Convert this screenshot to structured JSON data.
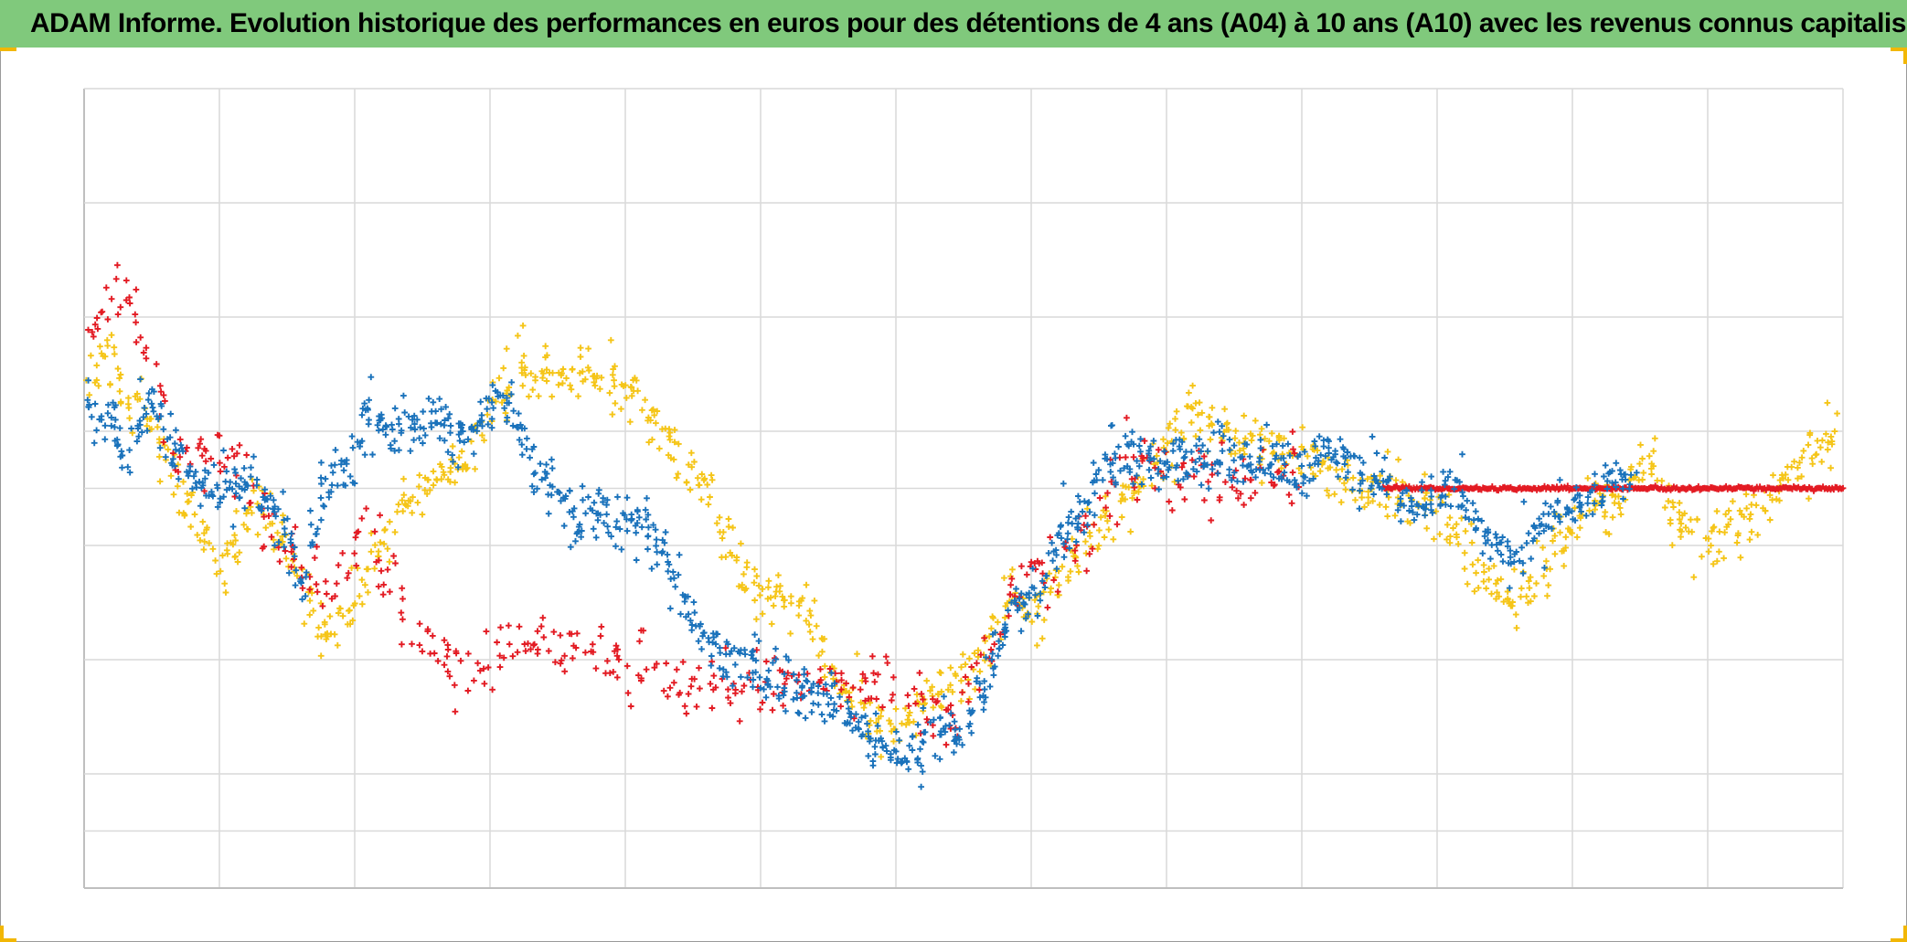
{
  "title": "ADAM Informe. Evolution historique des performances en euros pour des détentions de 4 ans (A04) à 10 ans (A10) avec les revenus connus capitalisés",
  "colors": {
    "title_bar": "#80c97c",
    "corner_marks": "#f2b705",
    "gridline": "#d9d9d9",
    "axis": "#bfbfbf"
  },
  "chart_data": {
    "type": "scatter",
    "title": "ADAM Informe. Evolution historique des performances en euros pour des détentions de 4 ans (A04) à 10 ans (A10) avec les revenus connus capitalisés",
    "xlabel": "",
    "ylabel": "",
    "x_range": [
      0,
      13
    ],
    "ylim": [
      -0.7,
      0.7
    ],
    "x_gridlines": [
      0,
      1,
      2,
      3,
      4,
      5,
      6,
      7,
      8,
      9,
      10,
      11,
      12,
      13
    ],
    "y_gridlines": [
      -0.7,
      -0.6,
      -0.5,
      -0.3,
      -0.1,
      0,
      0.1,
      0.3,
      0.5,
      0.7
    ],
    "tick_labels_visible": false,
    "marker": "plus",
    "legend": "none",
    "series": [
      {
        "name": "yellow",
        "color": "#f5c518",
        "anchors": [
          [
            0.0,
            0.17
          ],
          [
            0.15,
            0.24
          ],
          [
            0.3,
            0.16
          ],
          [
            0.5,
            0.12
          ],
          [
            0.7,
            0.0
          ],
          [
            0.85,
            -0.08
          ],
          [
            1.05,
            -0.15
          ],
          [
            1.25,
            -0.02
          ],
          [
            1.5,
            -0.1
          ],
          [
            1.6,
            -0.17
          ],
          [
            1.72,
            -0.22
          ],
          [
            1.85,
            -0.26
          ],
          [
            2.05,
            -0.16
          ],
          [
            2.35,
            -0.04
          ],
          [
            2.6,
            0.02
          ],
          [
            2.8,
            0.04
          ],
          [
            3.0,
            0.14
          ],
          [
            3.25,
            0.2
          ],
          [
            3.5,
            0.19
          ],
          [
            3.8,
            0.2
          ],
          [
            4.05,
            0.16
          ],
          [
            4.2,
            0.12
          ],
          [
            4.4,
            0.07
          ],
          [
            4.6,
            0.01
          ],
          [
            4.85,
            -0.14
          ],
          [
            5.05,
            -0.18
          ],
          [
            5.3,
            -0.2
          ],
          [
            5.55,
            -0.32
          ],
          [
            5.75,
            -0.38
          ],
          [
            5.9,
            -0.42
          ],
          [
            6.0,
            -0.42
          ],
          [
            6.2,
            -0.37
          ],
          [
            6.4,
            -0.35
          ],
          [
            6.6,
            -0.3
          ],
          [
            6.85,
            -0.18
          ],
          [
            7.05,
            -0.22
          ],
          [
            7.2,
            -0.15
          ],
          [
            7.4,
            -0.1
          ],
          [
            7.6,
            -0.05
          ],
          [
            7.95,
            0.05
          ],
          [
            8.2,
            0.14
          ],
          [
            8.45,
            0.1
          ],
          [
            8.7,
            0.07
          ],
          [
            9.0,
            0.07
          ],
          [
            9.3,
            0.02
          ],
          [
            9.6,
            -0.01
          ],
          [
            9.85,
            -0.01
          ],
          [
            10.05,
            -0.06
          ],
          [
            10.3,
            -0.13
          ],
          [
            10.55,
            -0.2
          ],
          [
            10.75,
            -0.15
          ],
          [
            10.95,
            -0.07
          ],
          [
            11.15,
            -0.03
          ],
          [
            11.35,
            -0.03
          ],
          [
            11.55,
            0.07
          ],
          [
            11.75,
            -0.05
          ],
          [
            12.0,
            -0.09
          ],
          [
            12.25,
            -0.05
          ],
          [
            12.5,
            -0.02
          ],
          [
            12.7,
            0.05
          ],
          [
            12.95,
            0.09
          ],
          [
            13.0,
            0.07
          ]
        ],
        "count": 1100,
        "jitter": [
          0.03,
          0.025
        ],
        "seed": 11
      },
      {
        "name": "red",
        "color": "#e31b23",
        "anchors": [
          [
            0.0,
            0.22
          ],
          [
            0.15,
            0.34
          ],
          [
            0.3,
            0.35
          ],
          [
            0.5,
            0.2
          ],
          [
            0.7,
            0.05
          ],
          [
            0.95,
            0.05
          ],
          [
            1.15,
            0.05
          ],
          [
            1.4,
            -0.08
          ],
          [
            1.6,
            -0.12
          ],
          [
            1.8,
            -0.18
          ],
          [
            2.05,
            -0.1
          ],
          [
            2.35,
            -0.2
          ],
          [
            2.6,
            -0.3
          ],
          [
            2.9,
            -0.33
          ],
          [
            3.2,
            -0.27
          ],
          [
            3.5,
            -0.3
          ],
          [
            3.75,
            -0.27
          ],
          [
            4.0,
            -0.31
          ],
          [
            4.2,
            -0.31
          ],
          [
            4.4,
            -0.33
          ],
          [
            4.7,
            -0.35
          ],
          [
            5.0,
            -0.35
          ],
          [
            5.3,
            -0.34
          ],
          [
            5.5,
            -0.36
          ],
          [
            5.75,
            -0.35
          ],
          [
            6.0,
            -0.36
          ],
          [
            6.2,
            -0.39
          ],
          [
            6.4,
            -0.41
          ],
          [
            6.55,
            -0.35
          ],
          [
            6.75,
            -0.25
          ],
          [
            6.95,
            -0.16
          ],
          [
            7.15,
            -0.12
          ],
          [
            7.4,
            -0.08
          ],
          [
            7.6,
            0.01
          ],
          [
            7.9,
            0.05
          ],
          [
            8.3,
            0.01
          ],
          [
            8.7,
            0.02
          ],
          [
            9.0,
            0.05
          ]
        ],
        "count": 480,
        "jitter": [
          0.035,
          0.03
        ],
        "seed": 23,
        "flat_tail": {
          "x_start": 9.6,
          "x_end": 13.0,
          "y": 0.0,
          "count": 300
        }
      },
      {
        "name": "blue",
        "color": "#1a72bb",
        "anchors": [
          [
            0.0,
            0.15
          ],
          [
            0.2,
            0.13
          ],
          [
            0.3,
            0.05
          ],
          [
            0.5,
            0.16
          ],
          [
            0.7,
            0.05
          ],
          [
            0.95,
            -0.01
          ],
          [
            1.2,
            0.01
          ],
          [
            1.45,
            -0.05
          ],
          [
            1.62,
            -0.18
          ],
          [
            1.75,
            -0.01
          ],
          [
            1.9,
            0.02
          ],
          [
            2.1,
            0.12
          ],
          [
            2.35,
            0.1
          ],
          [
            2.6,
            0.13
          ],
          [
            2.75,
            0.08
          ],
          [
            2.95,
            0.13
          ],
          [
            3.15,
            0.14
          ],
          [
            3.35,
            0.03
          ],
          [
            3.5,
            0.0
          ],
          [
            3.65,
            -0.05
          ],
          [
            3.8,
            -0.04
          ],
          [
            3.95,
            -0.07
          ],
          [
            4.1,
            -0.05
          ],
          [
            4.3,
            -0.13
          ],
          [
            4.5,
            -0.23
          ],
          [
            4.75,
            -0.3
          ],
          [
            5.0,
            -0.32
          ],
          [
            5.3,
            -0.36
          ],
          [
            5.55,
            -0.37
          ],
          [
            5.8,
            -0.43
          ],
          [
            6.05,
            -0.47
          ],
          [
            6.3,
            -0.42
          ],
          [
            6.5,
            -0.42
          ],
          [
            6.65,
            -0.35
          ],
          [
            6.85,
            -0.21
          ],
          [
            7.05,
            -0.18
          ],
          [
            7.25,
            -0.07
          ],
          [
            7.45,
            -0.02
          ],
          [
            7.6,
            0.06
          ],
          [
            7.8,
            0.05
          ],
          [
            8.1,
            0.05
          ],
          [
            8.4,
            0.05
          ],
          [
            8.7,
            0.05
          ],
          [
            9.0,
            0.02
          ],
          [
            9.2,
            0.07
          ],
          [
            9.45,
            0.02
          ],
          [
            9.65,
            0.0
          ]
        ],
        "count": 1050,
        "jitter": [
          0.03,
          0.025
        ],
        "seed": 37,
        "extra": [
          [
            9.7,
            -0.02
          ],
          [
            9.9,
            -0.03
          ],
          [
            10.15,
            0.01
          ],
          [
            10.35,
            -0.08
          ],
          [
            10.55,
            -0.12
          ],
          [
            10.75,
            -0.07
          ],
          [
            10.95,
            -0.02
          ],
          [
            11.1,
            -0.03
          ],
          [
            11.3,
            0.02
          ],
          [
            11.45,
            0.01
          ]
        ]
      }
    ]
  }
}
